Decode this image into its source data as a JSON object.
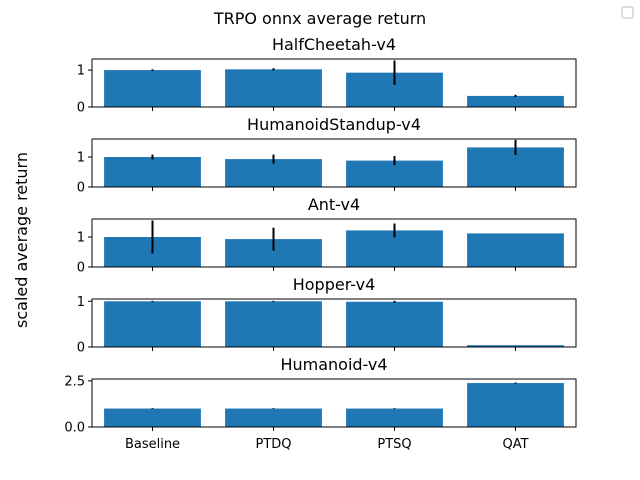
{
  "figure_title": "TRPO onnx average return",
  "ylabel": "scaled average return",
  "chart_data": [
    {
      "type": "bar",
      "title": "HalfCheetah-v4",
      "categories": [
        "Baseline",
        "PTDQ",
        "PTSQ",
        "QAT"
      ],
      "values": [
        1.0,
        1.02,
        0.93,
        0.3
      ],
      "errors": [
        0.02,
        0.03,
        0.33,
        0.03
      ],
      "ylim": [
        0,
        1.3
      ],
      "yticks": [
        0,
        1
      ],
      "ytick_labels": [
        "0",
        "1"
      ],
      "color": "#1f77b4"
    },
    {
      "type": "bar",
      "title": "HumanoidStandup-v4",
      "categories": [
        "Baseline",
        "PTDQ",
        "PTSQ",
        "QAT"
      ],
      "values": [
        1.0,
        0.93,
        0.88,
        1.32
      ],
      "errors": [
        0.08,
        0.15,
        0.15,
        0.25
      ],
      "ylim": [
        0,
        1.6
      ],
      "yticks": [
        0,
        1
      ],
      "ytick_labels": [
        "0",
        "1"
      ],
      "color": "#1f77b4"
    },
    {
      "type": "bar",
      "title": "Ant-v4",
      "categories": [
        "Baseline",
        "PTDQ",
        "PTSQ",
        "QAT"
      ],
      "values": [
        1.0,
        0.93,
        1.22,
        1.12
      ],
      "errors": [
        0.55,
        0.38,
        0.23,
        0.0
      ],
      "ylim": [
        0,
        1.6
      ],
      "yticks": [
        0,
        1
      ],
      "ytick_labels": [
        "0",
        "1"
      ],
      "color": "#1f77b4"
    },
    {
      "type": "bar",
      "title": "Hopper-v4",
      "categories": [
        "Baseline",
        "PTDQ",
        "PTSQ",
        "QAT"
      ],
      "values": [
        1.0,
        1.0,
        0.99,
        0.04
      ],
      "errors": [
        0.01,
        0.01,
        0.02,
        0.0
      ],
      "ylim": [
        0,
        1.05
      ],
      "yticks": [
        0,
        1
      ],
      "ytick_labels": [
        "0",
        "1"
      ],
      "color": "#1f77b4"
    },
    {
      "type": "bar",
      "title": "Humanoid-v4",
      "categories": [
        "Baseline",
        "PTDQ",
        "PTSQ",
        "QAT"
      ],
      "values": [
        1.0,
        1.0,
        1.0,
        2.38
      ],
      "errors": [
        0.02,
        0.02,
        0.02,
        0.03
      ],
      "ylim": [
        0,
        2.6
      ],
      "yticks": [
        0,
        2.5
      ],
      "ytick_labels": [
        "0.0",
        "2.5"
      ],
      "color": "#1f77b4"
    }
  ]
}
